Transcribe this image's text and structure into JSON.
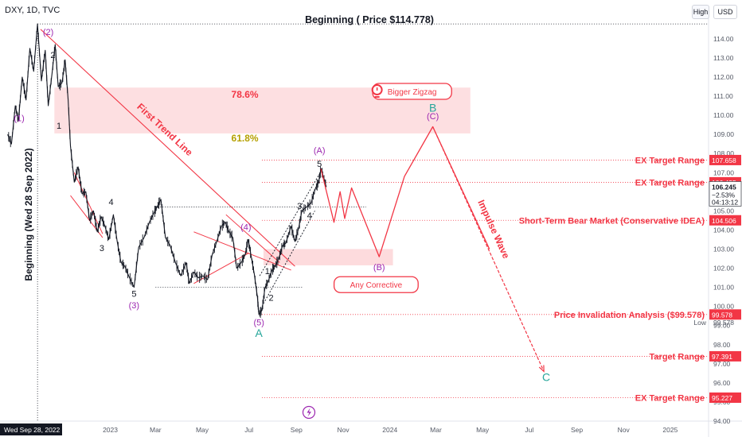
{
  "header": {
    "symbol": "DXY, 1D, TVC",
    "high_button": "High",
    "currency_button": "USD"
  },
  "chart_data": {
    "type": "line",
    "title": "Beginning ( Price $114.778)",
    "ylabel": "Beginning (Wed 28 Sep 2022)",
    "ylim": [
      94,
      115.2
    ],
    "y_ticks": [
      94,
      95,
      96,
      97,
      98,
      99,
      100,
      101,
      102,
      103,
      104,
      105,
      106,
      107,
      108,
      109,
      110,
      111,
      112,
      113,
      114
    ],
    "x_ticks": [
      "2023",
      "Mar",
      "May",
      "Jul",
      "Sep",
      "Nov",
      "2024",
      "Mar",
      "May",
      "Jul",
      "Sep",
      "Nov",
      "2025"
    ],
    "x_start_label": "Wed Sep 28, 2022",
    "last_price": {
      "value": "106.245",
      "change": "−2.53%",
      "countdown": "04:13:12"
    },
    "low_label": {
      "text": "Low",
      "value": "99.578"
    },
    "price_series": [
      [
        "2022-08-20",
        109.0
      ],
      [
        "2022-08-25",
        108.5
      ],
      [
        "2022-08-30",
        110.5
      ],
      [
        "2022-09-03",
        109.7
      ],
      [
        "2022-09-08",
        112.0
      ],
      [
        "2022-09-13",
        110.8
      ],
      [
        "2022-09-18",
        113.5
      ],
      [
        "2022-09-23",
        112.3
      ],
      [
        "2022-09-28",
        114.78
      ],
      [
        "2022-10-03",
        111.8
      ],
      [
        "2022-10-08",
        113.4
      ],
      [
        "2022-10-12",
        110.5
      ],
      [
        "2022-10-17",
        112.2
      ],
      [
        "2022-10-21",
        113.7
      ],
      [
        "2022-10-25",
        111.5
      ],
      [
        "2022-10-30",
        111.7
      ],
      [
        "2022-11-03",
        112.9
      ],
      [
        "2022-11-07",
        110.8
      ],
      [
        "2022-11-10",
        108.4
      ],
      [
        "2022-11-15",
        106.5
      ],
      [
        "2022-11-20",
        107.3
      ],
      [
        "2022-11-25",
        105.9
      ],
      [
        "2022-11-30",
        106.0
      ],
      [
        "2022-12-05",
        104.5
      ],
      [
        "2022-12-10",
        105.0
      ],
      [
        "2022-12-15",
        103.9
      ],
      [
        "2022-12-20",
        104.7
      ],
      [
        "2022-12-25",
        104.2
      ],
      [
        "2022-12-30",
        103.5
      ],
      [
        "2023-01-05",
        104.8
      ],
      [
        "2023-01-10",
        103.4
      ],
      [
        "2023-01-15",
        102.3
      ],
      [
        "2023-01-20",
        102.1
      ],
      [
        "2023-01-25",
        101.6
      ],
      [
        "2023-02-01",
        101.0
      ],
      [
        "2023-02-07",
        103.1
      ],
      [
        "2023-02-14",
        103.6
      ],
      [
        "2023-02-21",
        104.4
      ],
      [
        "2023-02-27",
        104.9
      ],
      [
        "2023-03-03",
        105.2
      ],
      [
        "2023-03-08",
        105.6
      ],
      [
        "2023-03-14",
        103.6
      ],
      [
        "2023-03-20",
        103.2
      ],
      [
        "2023-03-27",
        102.3
      ],
      [
        "2023-04-03",
        101.6
      ],
      [
        "2023-04-10",
        102.3
      ],
      [
        "2023-04-14",
        101.2
      ],
      [
        "2023-04-20",
        101.8
      ],
      [
        "2023-04-26",
        101.5
      ],
      [
        "2023-05-02",
        101.6
      ],
      [
        "2023-05-08",
        101.4
      ],
      [
        "2023-05-14",
        102.7
      ],
      [
        "2023-05-20",
        103.4
      ],
      [
        "2023-05-26",
        104.2
      ],
      [
        "2023-05-31",
        104.4
      ],
      [
        "2023-06-05",
        103.9
      ],
      [
        "2023-06-10",
        103.6
      ],
      [
        "2023-06-15",
        102.0
      ],
      [
        "2023-06-21",
        102.3
      ],
      [
        "2023-06-26",
        102.7
      ],
      [
        "2023-06-30",
        103.5
      ],
      [
        "2023-07-04",
        102.6
      ],
      [
        "2023-07-08",
        101.7
      ],
      [
        "2023-07-12",
        100.5
      ],
      [
        "2023-07-14",
        99.58
      ],
      [
        "2023-07-18",
        99.8
      ],
      [
        "2023-07-22",
        101.0
      ],
      [
        "2023-07-26",
        101.3
      ],
      [
        "2023-07-31",
        101.9
      ],
      [
        "2023-08-04",
        102.1
      ],
      [
        "2023-08-09",
        102.5
      ],
      [
        "2023-08-14",
        103.2
      ],
      [
        "2023-08-18",
        103.3
      ],
      [
        "2023-08-25",
        104.2
      ],
      [
        "2023-08-30",
        103.4
      ],
      [
        "2023-09-04",
        104.1
      ],
      [
        "2023-09-08",
        105.0
      ],
      [
        "2023-09-14",
        105.2
      ],
      [
        "2023-09-20",
        105.4
      ],
      [
        "2023-09-26",
        106.2
      ],
      [
        "2023-09-30",
        106.5
      ],
      [
        "2023-10-03",
        107.2
      ],
      [
        "2023-10-06",
        106.8
      ],
      [
        "2023-10-10",
        106.245
      ]
    ],
    "projection_path": [
      [
        "2023-10-03",
        107.2
      ],
      [
        "2023-10-20",
        104.4
      ],
      [
        "2023-10-28",
        106.0
      ],
      [
        "2023-11-03",
        104.6
      ],
      [
        "2023-11-12",
        106.2
      ],
      [
        "2023-12-18",
        102.6
      ],
      [
        "2024-01-20",
        106.8
      ],
      [
        "2024-02-26",
        109.4
      ],
      [
        "2024-05-10",
        103.0
      ],
      [
        "2024-07-20",
        96.6
      ]
    ],
    "fib_zones": [
      {
        "label": "78.6%",
        "from": 111.45,
        "to": 109.05,
        "start": "2022-10-20",
        "end": "2024-04-15"
      },
      {
        "label": "61.8%",
        "from": 109.05,
        "to": 109.05,
        "start": "2022-10-20",
        "end": "2024-04-15"
      }
    ],
    "zones": [
      {
        "name": "(B) target zone",
        "from": 103.0,
        "to": 102.15,
        "start": "2023-07-20",
        "end": "2024-01-05"
      }
    ],
    "levels": [
      {
        "label": "EX Target Range",
        "price": 107.658,
        "price_label": "107.658"
      },
      {
        "label": "EX Target Range",
        "price": 106.495,
        "price_label": "106.495"
      },
      {
        "label": "Short-Term Bear Market (Conservative IDEA)",
        "price": 104.506,
        "price_label": "104.506"
      },
      {
        "label": "Price Invalidation Analysis ($99.578)",
        "price": 99.578,
        "price_label": "99.578"
      },
      {
        "label": "Target Range",
        "price": 97.391,
        "price_label": "97.391"
      },
      {
        "label": "EX Target Range",
        "price": 95.227,
        "price_label": "95.227"
      }
    ],
    "level_start": "2023-07-18",
    "top_line": {
      "price": 114.778,
      "start": "2022-09-28"
    },
    "trendline": {
      "label": "First Trend Line",
      "from": [
        "2022-10-02",
        114.5
      ],
      "to": [
        "2023-08-30",
        102.1
      ]
    },
    "channel_lines": [
      {
        "from": [
          "2023-03-01",
          105.2
        ],
        "to": [
          "2023-12-01",
          105.2
        ]
      },
      {
        "from": [
          "2023-03-01",
          101.0
        ],
        "to": [
          "2023-09-10",
          101.0
        ]
      },
      {
        "from": [
          "2023-04-20",
          101.2
        ],
        "to": [
          "2023-07-01",
          102.8
        ]
      },
      {
        "from": [
          "2023-04-20",
          103.9
        ],
        "to": [
          "2023-08-25",
          101.9
        ]
      },
      {
        "from": [
          "2023-06-01",
          104.8
        ],
        "to": [
          "2023-08-10",
          102.3
        ]
      },
      {
        "from": [
          "2022-11-15",
          107.0
        ],
        "to": [
          "2022-12-22",
          103.8
        ]
      },
      {
        "from": [
          "2022-11-10",
          105.8
        ],
        "to": [
          "2022-12-22",
          103.6
        ]
      }
    ],
    "dotted_lines": [
      {
        "from": [
          "2023-07-18",
          100.0
        ],
        "to": [
          "2023-09-25",
          105.0
        ]
      },
      {
        "from": [
          "2023-07-15",
          101.6
        ],
        "to": [
          "2023-10-05",
          107.2
        ]
      }
    ],
    "impulse_arrow": {
      "label": "Impulse Wave",
      "from": [
        "2024-02-26",
        109.4
      ],
      "to": [
        "2024-07-20",
        96.6
      ]
    },
    "wave_labels": [
      {
        "text": "(2)",
        "date": "2022-10-12",
        "price": 114.2,
        "color": "#9c27b0"
      },
      {
        "text": "2",
        "date": "2022-10-18",
        "price": 113.0,
        "color": "#131722"
      },
      {
        "text": "(1)",
        "date": "2022-09-04",
        "price": 109.7,
        "color": "#9c27b0"
      },
      {
        "text": "1",
        "date": "2022-10-26",
        "price": 109.3,
        "color": "#131722"
      },
      {
        "text": "4",
        "date": "2023-01-02",
        "price": 105.3,
        "color": "#131722"
      },
      {
        "text": "3",
        "date": "2022-12-21",
        "price": 102.9,
        "color": "#131722"
      },
      {
        "text": "5",
        "date": "2023-02-01",
        "price": 100.5,
        "color": "#131722"
      },
      {
        "text": "(3)",
        "date": "2023-02-01",
        "price": 99.9,
        "color": "#9c27b0"
      },
      {
        "text": "(4)",
        "date": "2023-06-27",
        "price": 104.0,
        "color": "#9c27b0"
      },
      {
        "text": "(5)",
        "date": "2023-07-14",
        "price": 99.0,
        "color": "#9c27b0"
      },
      {
        "text": "A",
        "date": "2023-07-14",
        "price": 98.4,
        "color": "#26a69a"
      },
      {
        "text": "1",
        "date": "2023-07-25",
        "price": 101.7,
        "color": "#131722"
      },
      {
        "text": "2",
        "date": "2023-07-30",
        "price": 100.3,
        "color": "#131722"
      },
      {
        "text": "3",
        "date": "2023-09-05",
        "price": 105.1,
        "color": "#131722"
      },
      {
        "text": "4",
        "date": "2023-09-18",
        "price": 104.6,
        "color": "#131722"
      },
      {
        "text": "5",
        "date": "2023-10-01",
        "price": 107.3,
        "color": "#131722"
      },
      {
        "text": "(A)",
        "date": "2023-10-01",
        "price": 108.0,
        "color": "#9c27b0"
      },
      {
        "text": "(B)",
        "date": "2023-12-18",
        "price": 101.9,
        "color": "#9c27b0"
      },
      {
        "text": "B",
        "date": "2024-02-26",
        "price": 110.2,
        "color": "#26a69a"
      },
      {
        "text": "(C)",
        "date": "2024-02-26",
        "price": 109.8,
        "color": "#9c27b0"
      },
      {
        "text": "C",
        "date": "2024-07-23",
        "price": 96.1,
        "color": "#26a69a"
      }
    ],
    "callouts": [
      {
        "text": "Bigger Zigzag",
        "date": "2024-01-30",
        "price": 111.25
      },
      {
        "text": "Any Corrective",
        "date": "2023-12-14",
        "price": 101.14
      }
    ],
    "colors": {
      "accent": "#f23645",
      "wave_purple": "#9c27b0",
      "wave_green": "#26a69a",
      "price": "#131722",
      "fib_label": "#b5a000"
    }
  }
}
